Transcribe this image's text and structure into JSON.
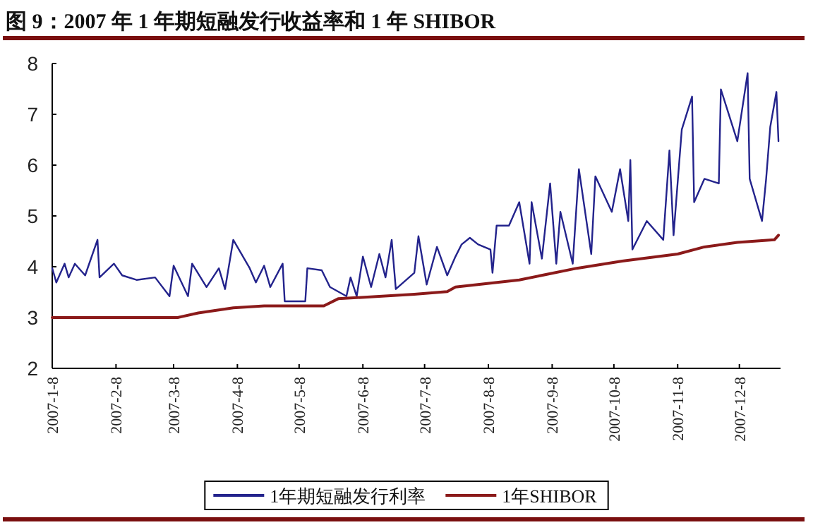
{
  "chart_data": {
    "type": "line",
    "title": "图 9：2007 年 1 年期短融发行收益率和 1 年 SHIBOR",
    "xlim": [
      "2007-01-08",
      "2007-12-28"
    ],
    "xticks": [
      {
        "value": "2007-01-08",
        "label": "2007-1-8"
      },
      {
        "value": "2007-02-08",
        "label": "2007-2-8"
      },
      {
        "value": "2007-03-08",
        "label": "2007-3-8"
      },
      {
        "value": "2007-04-08",
        "label": "2007-4-8"
      },
      {
        "value": "2007-05-08",
        "label": "2007-5-8"
      },
      {
        "value": "2007-06-08",
        "label": "2007-6-8"
      },
      {
        "value": "2007-07-08",
        "label": "2007-7-8"
      },
      {
        "value": "2007-08-08",
        "label": "2007-8-8"
      },
      {
        "value": "2007-09-08",
        "label": "2007-9-8"
      },
      {
        "value": "2007-10-08",
        "label": "2007-10-8"
      },
      {
        "value": "2007-11-08",
        "label": "2007-11-8"
      },
      {
        "value": "2007-12-08",
        "label": "2007-12-8"
      }
    ],
    "ylim": [
      2,
      8
    ],
    "yticks": [
      2,
      3,
      4,
      5,
      6,
      7,
      8
    ],
    "legend": "bottom",
    "marker": "none",
    "line_style": "solid",
    "series": [
      {
        "name": "1年期短融发行利率",
        "color": "#23238c",
        "x": [
          "2007-01-08",
          "2007-01-10",
          "2007-01-14",
          "2007-01-16",
          "2007-01-19",
          "2007-01-24",
          "2007-01-30",
          "2007-01-31",
          "2007-02-07",
          "2007-02-11",
          "2007-02-18",
          "2007-02-27",
          "2007-03-06",
          "2007-03-08",
          "2007-03-15",
          "2007-03-17",
          "2007-03-24",
          "2007-03-30",
          "2007-04-02",
          "2007-04-06",
          "2007-04-14",
          "2007-04-17",
          "2007-04-21",
          "2007-04-24",
          "2007-04-30",
          "2007-05-01",
          "2007-05-11",
          "2007-05-12",
          "2007-05-19",
          "2007-05-23",
          "2007-05-31",
          "2007-06-02",
          "2007-06-05",
          "2007-06-08",
          "2007-06-12",
          "2007-06-16",
          "2007-06-19",
          "2007-06-22",
          "2007-06-24",
          "2007-07-03",
          "2007-07-05",
          "2007-07-09",
          "2007-07-14",
          "2007-07-19",
          "2007-07-23",
          "2007-07-26",
          "2007-07-30",
          "2007-08-03",
          "2007-08-09",
          "2007-08-10",
          "2007-08-12",
          "2007-08-18",
          "2007-08-23",
          "2007-08-28",
          "2007-08-29",
          "2007-09-03",
          "2007-09-07",
          "2007-09-10",
          "2007-09-12",
          "2007-09-18",
          "2007-09-21",
          "2007-09-27",
          "2007-09-29",
          "2007-10-07",
          "2007-10-11",
          "2007-10-15",
          "2007-10-16",
          "2007-10-17",
          "2007-10-24",
          "2007-11-01",
          "2007-11-04",
          "2007-11-06",
          "2007-11-10",
          "2007-11-15",
          "2007-11-16",
          "2007-11-21",
          "2007-11-28",
          "2007-11-29",
          "2007-12-07",
          "2007-12-12",
          "2007-12-13",
          "2007-12-19",
          "2007-12-21",
          "2007-12-23",
          "2007-12-26",
          "2007-12-27"
        ],
        "values": [
          3.97,
          3.69,
          4.06,
          3.79,
          4.06,
          3.83,
          4.53,
          3.79,
          4.06,
          3.83,
          3.74,
          3.79,
          3.42,
          4.02,
          3.42,
          4.06,
          3.6,
          3.97,
          3.56,
          4.53,
          3.97,
          3.69,
          4.02,
          3.6,
          4.06,
          3.32,
          3.32,
          3.97,
          3.93,
          3.6,
          3.42,
          3.79,
          3.42,
          4.2,
          3.6,
          4.25,
          3.79,
          4.53,
          3.56,
          3.88,
          4.6,
          3.65,
          4.39,
          3.83,
          4.2,
          4.44,
          4.57,
          4.44,
          4.34,
          3.88,
          4.81,
          4.81,
          5.27,
          4.06,
          5.27,
          4.16,
          5.64,
          4.06,
          5.08,
          4.06,
          5.92,
          4.25,
          5.78,
          5.08,
          5.92,
          4.9,
          6.1,
          4.34,
          4.9,
          4.53,
          6.29,
          4.62,
          6.7,
          7.35,
          5.27,
          5.73,
          5.64,
          7.49,
          6.47,
          7.81,
          5.73,
          4.9,
          5.73,
          6.75,
          7.44,
          6.47
        ]
      },
      {
        "name": "1年SHIBOR",
        "color": "#8b1a1a",
        "x": [
          "2007-01-08",
          "2007-03-10",
          "2007-03-20",
          "2007-04-06",
          "2007-04-21",
          "2007-05-20",
          "2007-05-27",
          "2007-07-03",
          "2007-07-19",
          "2007-07-23",
          "2007-08-23",
          "2007-09-20",
          "2007-10-12",
          "2007-11-08",
          "2007-11-21",
          "2007-12-07",
          "2007-12-25",
          "2007-12-27"
        ],
        "values": [
          3.0,
          3.0,
          3.09,
          3.19,
          3.23,
          3.23,
          3.37,
          3.46,
          3.51,
          3.6,
          3.74,
          3.97,
          4.11,
          4.25,
          4.39,
          4.48,
          4.53,
          4.62
        ]
      }
    ]
  }
}
